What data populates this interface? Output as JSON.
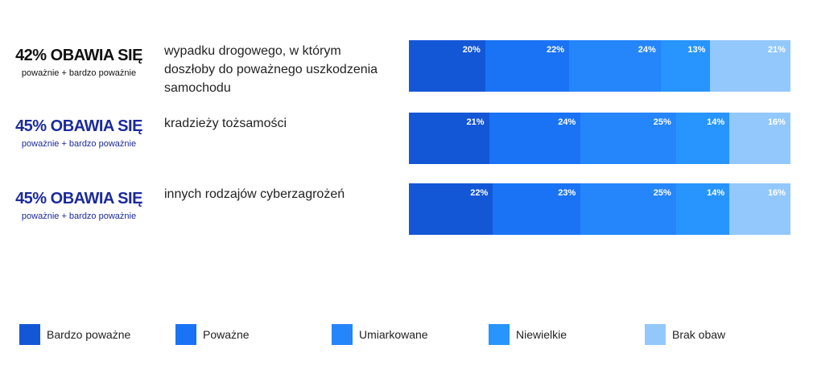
{
  "chart_data": {
    "type": "bar",
    "stacked": true,
    "orientation": "horizontal",
    "rows": [
      {
        "headline": "42% OBAWIA SIĘ",
        "sub": "poważnie + bardzo poważnie",
        "label_lines": [
          "wypadku drogowego, w którym",
          "doszłoby do  poważnego uszkodzenia",
          "samochodu"
        ],
        "values": [
          20,
          22,
          24,
          13,
          21
        ],
        "headline_color": "#111111"
      },
      {
        "headline": "45% OBAWIA SIĘ",
        "sub": "poważnie + bardzo poważnie",
        "label_lines": [
          "kradzieży tożsamości"
        ],
        "values": [
          21,
          24,
          25,
          14,
          16
        ],
        "headline_color": "#1b2a9c"
      },
      {
        "headline": "45% OBAWIA SIĘ",
        "sub": "poważnie + bardzo poważnie",
        "label_lines": [
          "innych rodzajów cyberzagrożeń"
        ],
        "values": [
          22,
          23,
          25,
          14,
          16
        ],
        "headline_color": "#1b2a9c"
      }
    ],
    "series": [
      {
        "name": "Bardzo poważne",
        "color": "#1457d6"
      },
      {
        "name": "Poważne",
        "color": "#1a73f5"
      },
      {
        "name": "Umiarkowane",
        "color": "#2585fb"
      },
      {
        "name": "Niewielkie",
        "color": "#2795fd"
      },
      {
        "name": "Brak obaw",
        "color": "#93c8fc"
      }
    ],
    "value_suffix": "%",
    "legend_position": "bottom"
  }
}
